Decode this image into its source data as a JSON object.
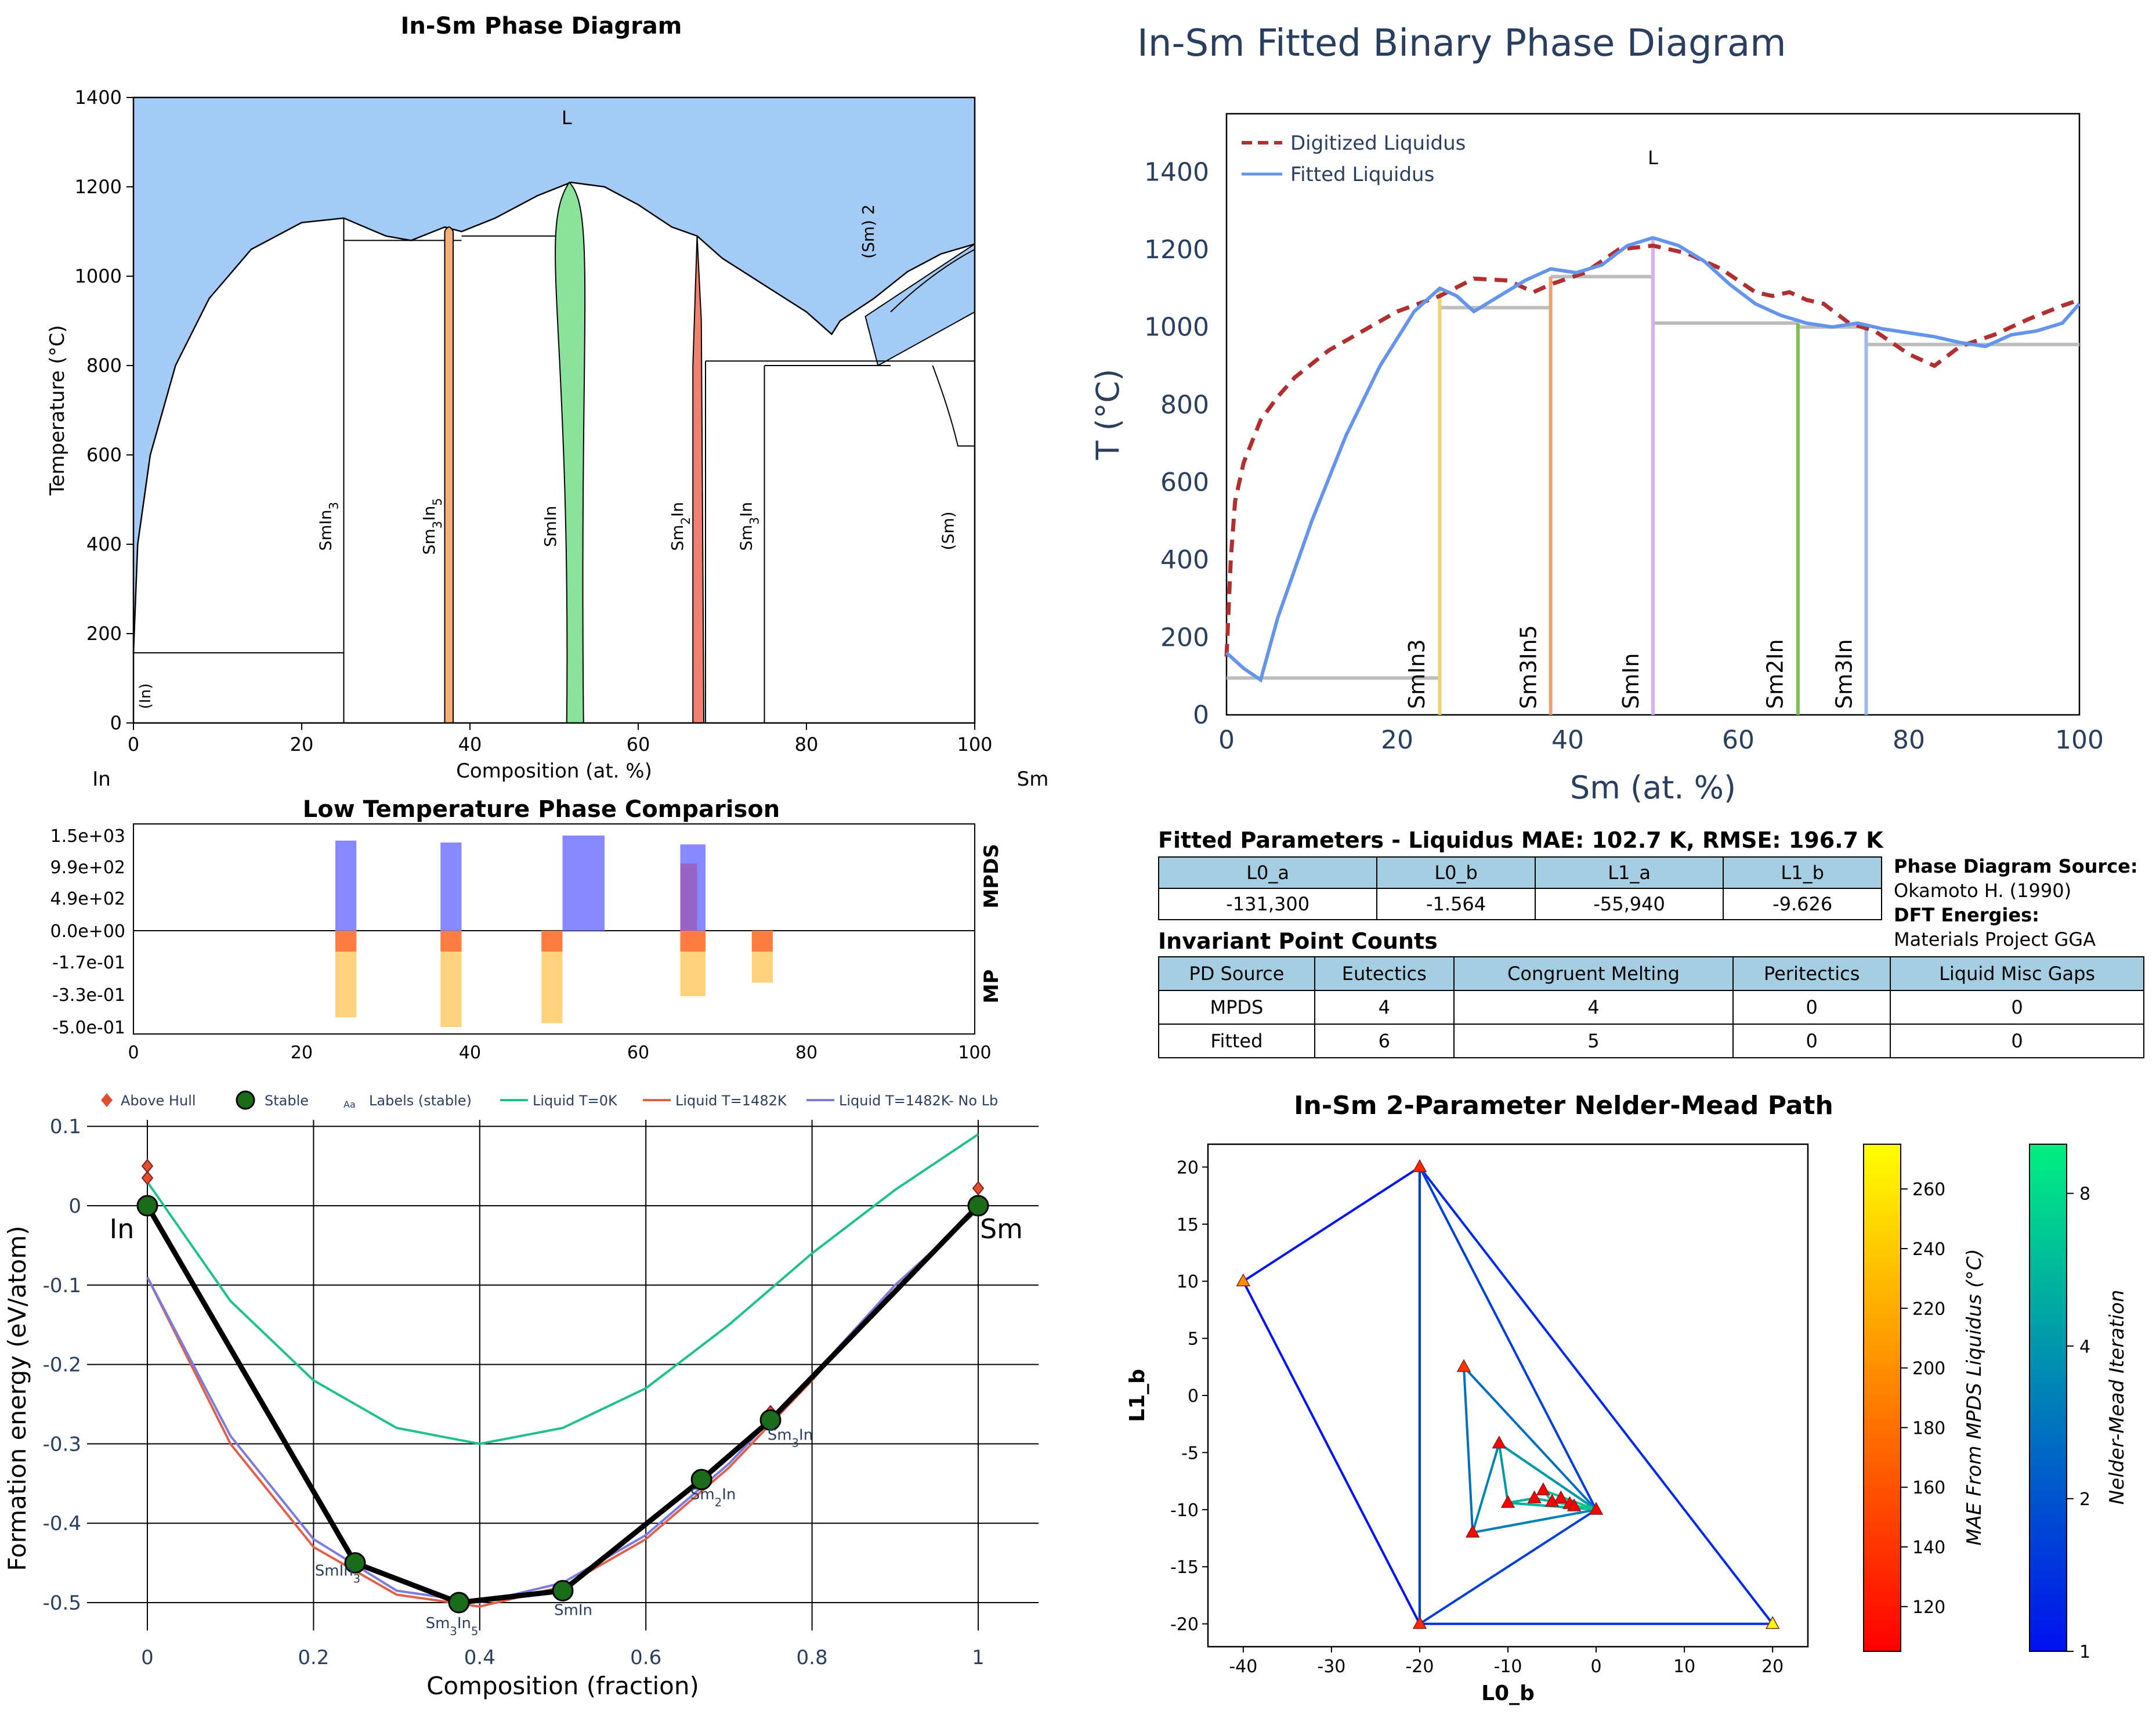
{
  "panels": {
    "phase_diagram": {
      "title": "In-Sm Phase Diagram",
      "xlabel": "Composition (at. %)",
      "ylabel": "Temperature (°C)",
      "left_element": "In",
      "right_element": "Sm",
      "region_labels": [
        "L",
        "(Sm) 2",
        "(In)",
        "(Sm)"
      ],
      "phase_labels": [
        "SmIn3",
        "Sm3In5",
        "SmIn",
        "Sm2In",
        "Sm3In"
      ]
    },
    "fitted": {
      "title": "In-Sm Fitted Binary Phase Diagram",
      "xlabel": "Sm (at. %)",
      "ylabel": "T (°C)",
      "legend": [
        "Digitized Liquidus",
        "Fitted Liquidus"
      ],
      "region_label": "L",
      "phase_labels": [
        "SmIn3",
        "Sm3In5",
        "SmIn",
        "Sm2In",
        "Sm3In"
      ]
    },
    "low_temp": {
      "title": "Low Temperature Phase Comparison",
      "top_label": "MPDS",
      "bottom_label": "MP"
    },
    "hull": {
      "xlabel": "Composition (fraction)",
      "ylabel": "Formation energy (eV/atom)",
      "legend": [
        "Above Hull",
        "Stable",
        "Labels (stable)",
        "Liquid T=0K",
        "Liquid T=1482K",
        "Liquid T=1482K- No Lb"
      ],
      "legend_aa": "Aa",
      "left_element": "In",
      "right_element": "Sm",
      "point_labels": [
        "SmIn3",
        "Sm3In5",
        "SmIn",
        "Sm2In",
        "Sm3In"
      ]
    },
    "nelder": {
      "title": "In-Sm 2-Parameter Nelder-Mead Path",
      "xlabel": "L0_b",
      "ylabel": "L1_b",
      "cbar1_label": "MAE From MPDS Liquidus (°C)",
      "cbar2_label": "Nelder-Mead Iteration"
    }
  },
  "fitted_params": {
    "title": "Fitted Parameters - Liquidus MAE: 102.7 K, RMSE: 196.7 K",
    "headers": [
      "L0_a",
      "L0_b",
      "L1_a",
      "L1_b"
    ],
    "values": [
      "-131,300",
      "-1.564",
      "-55,940",
      "-9.626"
    ]
  },
  "source_info": {
    "pd_source_label": "Phase Diagram Source:",
    "pd_source": "Okamoto H. (1990)",
    "dft_label": "DFT Energies:",
    "dft_source": "Materials Project GGA"
  },
  "invariants": {
    "title": "Invariant Point Counts",
    "headers": [
      "PD Source",
      "Eutectics",
      "Congruent Melting",
      "Peritectics",
      "Liquid Misc Gaps"
    ],
    "rows": [
      [
        "MPDS",
        "4",
        "4",
        "0",
        "0"
      ],
      [
        "Fitted",
        "6",
        "5",
        "0",
        "0"
      ]
    ]
  },
  "colors": {
    "liquid_fill": "#a4cbf5",
    "digitized": "#b03030",
    "fitted": "#6495ed",
    "mpds_bar": "#7b7bff",
    "mp_bar": "#ffd27f",
    "mp_bar_dark": "#ff6633",
    "liquid0": "#1fc08e",
    "liquid1482": "#e0604a",
    "liquid1482nolb": "#7b7bdd",
    "hull": "#000000",
    "stable": "#1a6b1a"
  },
  "chart_data": [
    {
      "type": "area",
      "name": "In-Sm Phase Diagram",
      "xlim": [
        0,
        100
      ],
      "ylim": [
        0,
        1400
      ],
      "xticks": [
        0,
        20,
        40,
        60,
        80,
        100
      ],
      "yticks": [
        0,
        200,
        400,
        600,
        800,
        1000,
        1200,
        1400
      ],
      "liquidus": [
        [
          0,
          157
        ],
        [
          0.5,
          400
        ],
        [
          2,
          600
        ],
        [
          5,
          800
        ],
        [
          9,
          950
        ],
        [
          14,
          1060
        ],
        [
          20,
          1120
        ],
        [
          25,
          1130
        ],
        [
          30,
          1090
        ],
        [
          33,
          1080
        ],
        [
          37,
          1110
        ],
        [
          39,
          1100
        ],
        [
          43,
          1130
        ],
        [
          48,
          1180
        ],
        [
          52,
          1210
        ],
        [
          56,
          1200
        ],
        [
          60,
          1160
        ],
        [
          64,
          1110
        ],
        [
          67,
          1090
        ],
        [
          70,
          1040
        ],
        [
          75,
          980
        ],
        [
          80,
          920
        ],
        [
          83,
          870
        ],
        [
          84,
          900
        ],
        [
          88,
          950
        ],
        [
          92,
          1010
        ],
        [
          96,
          1050
        ],
        [
          100,
          1072
        ]
      ],
      "solidus_lines": [
        {
          "x": [
            0,
            25
          ],
          "y": 157
        },
        {
          "x": [
            25,
            39
          ],
          "y": 1080
        },
        {
          "x": [
            39,
            51
          ],
          "y": 1090
        },
        {
          "x": [
            68,
            100
          ],
          "y": 810
        },
        {
          "x": [
            75,
            90
          ],
          "y": 800
        }
      ],
      "phases": [
        {
          "name": "SmIn3",
          "x": 25
        },
        {
          "name": "Sm3In5",
          "x": 37.5
        },
        {
          "name": "SmIn",
          "x": 52
        },
        {
          "name": "Sm2In",
          "x": 67
        },
        {
          "name": "Sm3In",
          "x": 75
        }
      ]
    },
    {
      "type": "line",
      "name": "In-Sm Fitted Binary Phase Diagram",
      "xlim": [
        0,
        100
      ],
      "ylim": [
        0,
        1550
      ],
      "xticks": [
        0,
        20,
        40,
        60,
        80,
        100
      ],
      "yticks": [
        0,
        200,
        400,
        600,
        800,
        1000,
        1200,
        1400
      ],
      "series": [
        {
          "name": "Digitized Liquidus",
          "x": [
            0,
            0.5,
            1,
            2,
            4,
            6,
            8,
            12,
            16,
            20,
            25,
            29,
            33,
            36,
            38,
            42,
            46,
            50,
            54,
            58,
            62,
            64,
            66,
            68,
            70,
            73,
            76,
            80,
            83,
            86,
            90,
            94,
            98,
            100
          ],
          "y": [
            150,
            400,
            550,
            650,
            760,
            820,
            870,
            940,
            990,
            1040,
            1080,
            1125,
            1120,
            1090,
            1110,
            1140,
            1200,
            1210,
            1190,
            1150,
            1090,
            1080,
            1090,
            1070,
            1060,
            1010,
            990,
            930,
            900,
            950,
            980,
            1020,
            1055,
            1070
          ]
        },
        {
          "name": "Fitted Liquidus",
          "x": [
            0,
            2,
            4,
            6,
            10,
            14,
            18,
            22,
            25,
            27,
            29,
            32,
            35,
            38,
            41,
            44,
            47,
            50,
            53,
            56,
            59,
            62,
            65,
            68,
            71,
            74,
            77,
            80,
            83,
            86,
            89,
            92,
            95,
            98,
            100
          ],
          "y": [
            160,
            120,
            90,
            250,
            500,
            720,
            900,
            1040,
            1100,
            1080,
            1040,
            1080,
            1120,
            1150,
            1140,
            1160,
            1210,
            1230,
            1210,
            1170,
            1110,
            1060,
            1030,
            1010,
            1000,
            1010,
            995,
            985,
            975,
            960,
            950,
            980,
            990,
            1010,
            1060
          ]
        }
      ],
      "phase_lines": [
        {
          "name": "SmIn3",
          "x": 25,
          "color": "#f0d070"
        },
        {
          "name": "Sm3In5",
          "x": 38,
          "color": "#f0a070"
        },
        {
          "name": "SmIn",
          "x": 50,
          "color": "#d8b0f0"
        },
        {
          "name": "Sm2In",
          "x": 67,
          "color": "#7dc050"
        },
        {
          "name": "Sm3In",
          "x": 75,
          "color": "#a0b8e8"
        }
      ],
      "invariant_lines": [
        {
          "x": [
            0,
            25
          ],
          "y": 95
        },
        {
          "x": [
            25,
            38
          ],
          "y": 1050
        },
        {
          "x": [
            38,
            50
          ],
          "y": 1130
        },
        {
          "x": [
            50,
            67
          ],
          "y": 1010
        },
        {
          "x": [
            67,
            75
          ],
          "y": 1000
        },
        {
          "x": [
            75,
            100
          ],
          "y": 955
        }
      ]
    },
    {
      "type": "bar",
      "name": "Low Temperature Phase Comparison",
      "xlim": [
        0,
        100
      ],
      "yticks": [
        "1.5e+03",
        "9.9e+02",
        "4.9e+02",
        "0.0e+00",
        "-1.7e-01",
        "-3.3e-01",
        "-5.0e-01"
      ],
      "mpds": [
        {
          "x0": 24,
          "x1": 26.5,
          "value": 1420
        },
        {
          "x0": 36.5,
          "x1": 39,
          "value": 1390
        },
        {
          "x0": 51,
          "x1": 56,
          "value": 1500
        },
        {
          "x0": 65,
          "x1": 68,
          "value": 1360
        }
      ],
      "mp": [
        {
          "x0": 24,
          "x1": 26.5,
          "value": -0.45
        },
        {
          "x0": 36.5,
          "x1": 39,
          "value": -0.5
        },
        {
          "x0": 48.5,
          "x1": 51,
          "value": -0.48
        },
        {
          "x0": 65,
          "x1": 68,
          "value": -0.34
        },
        {
          "x0": 73.5,
          "x1": 76,
          "value": -0.27
        }
      ]
    },
    {
      "type": "line",
      "name": "Formation energy hull",
      "xlim": [
        -0.02,
        1.07
      ],
      "ylim": [
        -0.52,
        0.11
      ],
      "xticks": [
        0,
        0.2,
        0.4,
        0.6,
        0.8,
        1
      ],
      "yticks": [
        0.1,
        0,
        -0.1,
        -0.2,
        -0.3,
        -0.4,
        -0.5
      ],
      "hull": {
        "x": [
          0,
          0.25,
          0.375,
          0.5,
          0.667,
          0.75,
          1
        ],
        "y": [
          0,
          -0.45,
          -0.5,
          -0.485,
          -0.345,
          -0.27,
          0
        ]
      },
      "stable_points": [
        {
          "label": "In",
          "x": 0,
          "y": 0
        },
        {
          "label": "SmIn3",
          "x": 0.25,
          "y": -0.45
        },
        {
          "label": "Sm3In5",
          "x": 0.375,
          "y": -0.5
        },
        {
          "label": "SmIn",
          "x": 0.5,
          "y": -0.485
        },
        {
          "label": "Sm2In",
          "x": 0.667,
          "y": -0.345
        },
        {
          "label": "Sm3In",
          "x": 0.75,
          "y": -0.27
        },
        {
          "label": "Sm",
          "x": 1,
          "y": 0
        }
      ],
      "above_hull": [
        [
          0,
          0.05
        ],
        [
          0,
          0.035
        ],
        [
          0.75,
          -0.26
        ],
        [
          1,
          0.022
        ],
        [
          1,
          0.005
        ]
      ],
      "series": [
        {
          "name": "Liquid T=0K",
          "x": [
            0,
            0.1,
            0.2,
            0.3,
            0.4,
            0.5,
            0.6,
            0.7,
            0.8,
            0.9,
            1
          ],
          "y": [
            0.03,
            -0.12,
            -0.22,
            -0.28,
            -0.3,
            -0.28,
            -0.23,
            -0.15,
            -0.06,
            0.02,
            0.09
          ]
        },
        {
          "name": "Liquid T=1482K",
          "x": [
            0,
            0.1,
            0.2,
            0.3,
            0.4,
            0.5,
            0.6,
            0.7,
            0.8,
            0.9,
            1
          ],
          "y": [
            -0.09,
            -0.3,
            -0.43,
            -0.49,
            -0.505,
            -0.48,
            -0.42,
            -0.33,
            -0.22,
            -0.1,
            -0.005
          ]
        },
        {
          "name": "Liquid T=1482K- No Lb",
          "x": [
            0,
            0.1,
            0.2,
            0.3,
            0.4,
            0.5,
            0.6,
            0.7,
            0.8,
            0.9,
            1
          ],
          "y": [
            -0.09,
            -0.29,
            -0.42,
            -0.485,
            -0.5,
            -0.475,
            -0.415,
            -0.325,
            -0.215,
            -0.1,
            -0.005
          ]
        }
      ]
    },
    {
      "type": "scatter",
      "name": "In-Sm 2-Parameter Nelder-Mead Path",
      "xlim": [
        -44,
        24
      ],
      "ylim": [
        -22,
        22
      ],
      "xticks": [
        -40,
        -30,
        -20,
        -10,
        0,
        10,
        20
      ],
      "yticks": [
        -20,
        -15,
        -10,
        -5,
        0,
        5,
        10,
        15,
        20
      ],
      "points": [
        {
          "x": -20,
          "y": 20,
          "mae": 130
        },
        {
          "x": -40,
          "y": 10,
          "mae": 200
        },
        {
          "x": -20,
          "y": -20,
          "mae": 130
        },
        {
          "x": 20,
          "y": -20,
          "mae": 270
        },
        {
          "x": 0,
          "y": -10,
          "mae": 105
        },
        {
          "x": -15,
          "y": 2.5,
          "mae": 140
        },
        {
          "x": -14,
          "y": -12,
          "mae": 110
        },
        {
          "x": -11,
          "y": -4.2,
          "mae": 108
        },
        {
          "x": -10,
          "y": -9.4,
          "mae": 106
        },
        {
          "x": -7,
          "y": -9,
          "mae": 105
        },
        {
          "x": -6,
          "y": -8.3,
          "mae": 105
        },
        {
          "x": -5,
          "y": -9.3,
          "mae": 104
        },
        {
          "x": -4,
          "y": -9,
          "mae": 104
        },
        {
          "x": -3,
          "y": -9.5,
          "mae": 104
        },
        {
          "x": -2.5,
          "y": -9.7,
          "mae": 103
        }
      ],
      "triangles": [
        {
          "iter": 1,
          "pts": [
            [
              -20,
              20
            ],
            [
              -40,
              10
            ],
            [
              -20,
              -20
            ]
          ]
        },
        {
          "iter": 2,
          "pts": [
            [
              -20,
              20
            ],
            [
              20,
              -20
            ],
            [
              -20,
              -20
            ]
          ]
        },
        {
          "iter": 3,
          "pts": [
            [
              -20,
              20
            ],
            [
              0,
              -10
            ],
            [
              -20,
              -20
            ]
          ]
        },
        {
          "iter": 5,
          "pts": [
            [
              -15,
              2.5
            ],
            [
              0,
              -10
            ],
            [
              -14,
              -12
            ]
          ]
        },
        {
          "iter": 6,
          "pts": [
            [
              -11,
              -4.2
            ],
            [
              0,
              -10
            ],
            [
              -14,
              -12
            ]
          ]
        },
        {
          "iter": 7,
          "pts": [
            [
              -11,
              -4.2
            ],
            [
              0,
              -10
            ],
            [
              -10,
              -9.4
            ]
          ]
        },
        {
          "iter": 8,
          "pts": [
            [
              -7,
              -9
            ],
            [
              0,
              -10
            ],
            [
              -10,
              -9.4
            ]
          ]
        },
        {
          "iter": 9,
          "pts": [
            [
              -6,
              -8.3
            ],
            [
              0,
              -10
            ],
            [
              -5,
              -9.3
            ]
          ]
        }
      ],
      "cbar_mae": {
        "ticks": [
          120,
          140,
          160,
          180,
          200,
          220,
          240,
          260
        ],
        "range": [
          105,
          275
        ]
      },
      "cbar_iter": {
        "ticks": [
          1,
          2,
          4,
          8
        ],
        "range": [
          1,
          10
        ]
      }
    }
  ]
}
